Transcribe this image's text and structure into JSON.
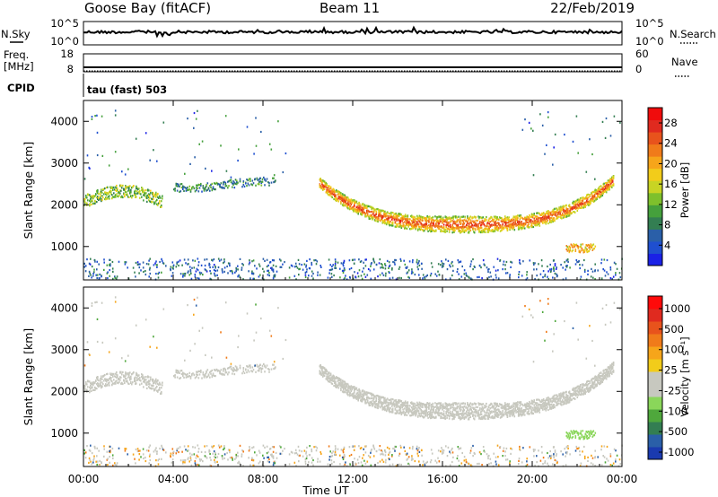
{
  "header": {
    "site": "Goose Bay (fitACF)",
    "beam": "Beam 11",
    "date": "22/Feb/2019"
  },
  "strip_labels": {
    "nsky": "N.Sky",
    "nsky_ticks": [
      "10^5",
      "10^0"
    ],
    "nsearch": "N.Search",
    "nsearch_ticks": [
      "10^5",
      "10^0"
    ],
    "freq_label_1": "Freq.",
    "freq_label_2": "[MHz]",
    "freq_ticks": [
      "18",
      "8"
    ],
    "nave": "Nave",
    "nave_ticks": [
      "60",
      "0"
    ],
    "cpid": "CPID",
    "cpid_text": "tau (fast) 503"
  },
  "chart_data": [
    {
      "type": "line",
      "name": "noise",
      "series": [
        {
          "name": "N.Sky",
          "level": 0.55
        },
        {
          "name": "N.Search",
          "level": 0.5
        }
      ],
      "x_range_h": [
        0,
        24
      ]
    },
    {
      "type": "line",
      "name": "freq-nave",
      "freq_mhz": 10.5,
      "freq_ylim": [
        8,
        18
      ],
      "nave_ylim": [
        0,
        60
      ]
    },
    {
      "type": "heatmap",
      "name": "power",
      "ylabel": "Slant Range [km]",
      "xlabel": "",
      "ylim": [
        200,
        4500
      ],
      "yticks": [
        "1000",
        "2000",
        "3000",
        "4000"
      ],
      "yticks_values": [
        1000,
        2000,
        3000,
        4000
      ],
      "colorbar": {
        "label": "Power [dB]",
        "ticks": [
          "4",
          "8",
          "12",
          "16",
          "20",
          "24",
          "28"
        ],
        "range": [
          0,
          31
        ],
        "colors": [
          "#1a21e6",
          "#1f4fd0",
          "#2a5fa8",
          "#337e52",
          "#45a03c",
          "#7ec02c",
          "#c8d424",
          "#f2cc1a",
          "#f6a51a",
          "#f07b1a",
          "#e8531c",
          "#e02a1f",
          "#f00c0c"
        ]
      }
    },
    {
      "type": "heatmap",
      "name": "velocity",
      "ylabel": "Slant Range [km]",
      "xlabel": "Time UT",
      "ylim": [
        200,
        4500
      ],
      "yticks": [
        "1000",
        "2000",
        "3000",
        "4000"
      ],
      "yticks_values": [
        1000,
        2000,
        3000,
        4000
      ],
      "xticks": [
        "00:00",
        "04:00",
        "08:00",
        "12:00",
        "16:00",
        "20:00",
        "00:00"
      ],
      "xticks_values": [
        0,
        4,
        8,
        12,
        16,
        20,
        24
      ],
      "colorbar": {
        "label": "Velocity [m s⁻¹]",
        "ticks": [
          "1000",
          "500",
          "100",
          "25",
          "-25",
          "-100",
          "-500",
          "-1000"
        ],
        "colors": [
          "#1a3ab0",
          "#2a5fa8",
          "#337e52",
          "#4fa83c",
          "#8ad65a",
          "#c7c8bf",
          "#c7c8bf",
          "#f2cc1a",
          "#f6a51a",
          "#f07b1a",
          "#e8531c",
          "#e02a1f",
          "#ff0a0a"
        ]
      }
    }
  ]
}
